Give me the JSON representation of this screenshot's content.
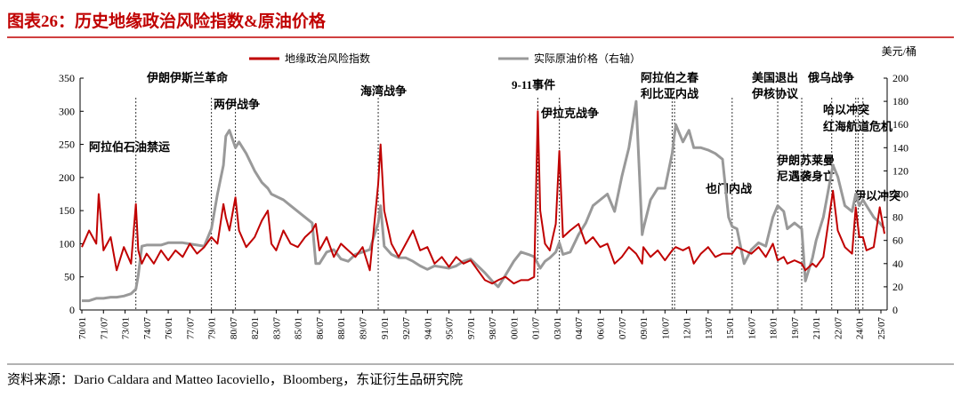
{
  "chart_data": {
    "type": "line",
    "title": "图表26：历史地缘政治风险指数&原油价格",
    "source": "资料来源：Dario Caldara and Matteo Iacoviello，Bloomberg，东证衍生品研究院",
    "y2label": "美元/桶",
    "xticks": [
      "70/01",
      "71/07",
      "73/01",
      "74/07",
      "76/01",
      "77/07",
      "79/01",
      "80/07",
      "82/01",
      "83/07",
      "85/01",
      "86/07",
      "88/01",
      "89/07",
      "91/01",
      "92/07",
      "94/01",
      "95/07",
      "97/01",
      "98/07",
      "00/01",
      "01/07",
      "03/01",
      "04/07",
      "06/01",
      "07/07",
      "09/01",
      "10/07",
      "12/01",
      "13/07",
      "15/01",
      "16/07",
      "18/01",
      "19/07",
      "21/01",
      "22/07",
      "24/01",
      "25/07"
    ],
    "x": [
      "70/01",
      "70/07",
      "71/01",
      "71/03",
      "71/07",
      "72/01",
      "72/06",
      "72/12",
      "73/06",
      "73/10",
      "73/12",
      "74/03",
      "74/07",
      "75/01",
      "75/07",
      "76/01",
      "76/07",
      "77/01",
      "77/07",
      "78/01",
      "78/07",
      "79/01",
      "79/06",
      "79/11",
      "80/01",
      "80/04",
      "80/09",
      "80/12",
      "81/06",
      "82/01",
      "82/07",
      "82/12",
      "83/03",
      "83/07",
      "84/01",
      "84/07",
      "85/01",
      "85/07",
      "86/01",
      "86/04",
      "86/07",
      "87/01",
      "87/07",
      "88/01",
      "88/07",
      "89/01",
      "89/07",
      "90/01",
      "90/08",
      "90/10",
      "91/01",
      "91/07",
      "92/01",
      "92/07",
      "93/01",
      "93/07",
      "94/01",
      "94/07",
      "95/01",
      "95/07",
      "96/01",
      "96/07",
      "97/01",
      "97/07",
      "98/01",
      "98/07",
      "98/12",
      "99/06",
      "00/01",
      "00/07",
      "01/01",
      "01/06",
      "01/09",
      "01/11",
      "02/03",
      "02/07",
      "02/12",
      "03/03",
      "03/06",
      "03/12",
      "04/07",
      "05/01",
      "05/07",
      "06/01",
      "06/07",
      "07/01",
      "07/07",
      "08/01",
      "08/07",
      "08/12",
      "09/01",
      "09/07",
      "10/01",
      "10/07",
      "11/01",
      "11/04",
      "11/10",
      "12/03",
      "12/07",
      "13/01",
      "13/07",
      "14/01",
      "14/07",
      "14/12",
      "15/03",
      "15/07",
      "16/01",
      "16/07",
      "17/01",
      "17/07",
      "18/01",
      "18/05",
      "18/10",
      "19/01",
      "19/07",
      "20/01",
      "20/04",
      "20/10",
      "21/01",
      "21/07",
      "22/03",
      "22/07",
      "23/01",
      "23/07",
      "23/10",
      "24/01",
      "24/04",
      "24/07",
      "25/01",
      "25/06",
      "25/10"
    ],
    "series": [
      {
        "name": "地缘政治风险指数",
        "color": "#c00000",
        "values": [
          95,
          120,
          100,
          175,
          90,
          110,
          60,
          95,
          70,
          160,
          90,
          70,
          85,
          70,
          90,
          75,
          90,
          80,
          100,
          85,
          95,
          110,
          100,
          160,
          140,
          120,
          170,
          120,
          95,
          110,
          135,
          150,
          100,
          90,
          120,
          100,
          95,
          110,
          120,
          130,
          90,
          110,
          80,
          100,
          90,
          80,
          95,
          60,
          190,
          250,
          150,
          100,
          80,
          100,
          120,
          90,
          95,
          70,
          80,
          65,
          80,
          70,
          75,
          60,
          45,
          40,
          45,
          50,
          40,
          45,
          45,
          50,
          300,
          150,
          100,
          90,
          130,
          240,
          110,
          120,
          130,
          100,
          110,
          95,
          100,
          70,
          80,
          95,
          85,
          70,
          95,
          80,
          90,
          75,
          90,
          95,
          90,
          95,
          70,
          85,
          95,
          80,
          85,
          85,
          85,
          95,
          90,
          85,
          95,
          80,
          100,
          75,
          80,
          70,
          75,
          70,
          60,
          70,
          65,
          80,
          180,
          120,
          95,
          85,
          155,
          110,
          110,
          90,
          95,
          155,
          115
        ]
      },
      {
        "name": "实际原油价格（右轴）",
        "color": "#999999",
        "axis": "y2",
        "values": [
          8,
          8,
          10,
          10,
          10,
          11,
          11,
          12,
          14,
          18,
          30,
          55,
          56,
          56,
          56,
          58,
          58,
          58,
          57,
          56,
          55,
          70,
          100,
          125,
          150,
          155,
          140,
          145,
          135,
          120,
          110,
          105,
          100,
          98,
          95,
          90,
          85,
          80,
          75,
          40,
          40,
          50,
          52,
          44,
          42,
          48,
          50,
          52,
          75,
          90,
          55,
          48,
          45,
          45,
          42,
          38,
          35,
          38,
          37,
          36,
          38,
          42,
          44,
          38,
          32,
          25,
          20,
          30,
          42,
          50,
          48,
          46,
          40,
          36,
          42,
          45,
          50,
          58,
          48,
          50,
          65,
          75,
          90,
          95,
          100,
          85,
          115,
          140,
          180,
          65,
          70,
          95,
          105,
          105,
          135,
          160,
          145,
          155,
          140,
          140,
          138,
          135,
          130,
          80,
          72,
          70,
          40,
          52,
          58,
          55,
          80,
          90,
          85,
          70,
          75,
          70,
          25,
          45,
          60,
          80,
          125,
          115,
          90,
          85,
          100,
          90,
          95,
          90,
          80,
          75,
          70
        ]
      }
    ],
    "ylim": [
      0,
      350
    ],
    "yticks": [
      0,
      50,
      100,
      150,
      200,
      250,
      300,
      350
    ],
    "y2lim": [
      0,
      200
    ],
    "y2ticks": [
      0,
      20,
      40,
      60,
      80,
      100,
      120,
      140,
      160,
      180,
      200
    ],
    "events": [
      {
        "label": [
          "阿拉伯石油禁运"
        ],
        "date": "73/10"
      },
      {
        "label": [
          "伊朗伊斯兰革命"
        ],
        "date": "79/01"
      },
      {
        "label": [
          "两伊战争"
        ],
        "date": "80/09"
      },
      {
        "label": [
          "海湾战争"
        ],
        "date": "90/08"
      },
      {
        "label": [
          "9-11事件"
        ],
        "date": "01/09"
      },
      {
        "label": [
          "伊拉克战争"
        ],
        "date": "03/03"
      },
      {
        "label": [
          "阿拉伯之春"
        ],
        "date": "11/01"
      },
      {
        "label": [
          "利比亚内战"
        ],
        "date": "11/03"
      },
      {
        "label": [
          "也门内战"
        ],
        "date": "15/03"
      },
      {
        "label": [
          "美国退出",
          "伊核协议"
        ],
        "date": "18/05"
      },
      {
        "label": [
          "伊朗苏莱曼",
          "尼遇袭身亡"
        ],
        "date": "20/01"
      },
      {
        "label": [
          "俄乌战争"
        ],
        "date": "22/02"
      },
      {
        "label": [
          "哈以冲突"
        ],
        "date": "23/10"
      },
      {
        "label": [
          "红海航道危机"
        ],
        "date": "23/12"
      },
      {
        "label": [
          "伊以冲突"
        ],
        "date": "24/04"
      }
    ]
  }
}
